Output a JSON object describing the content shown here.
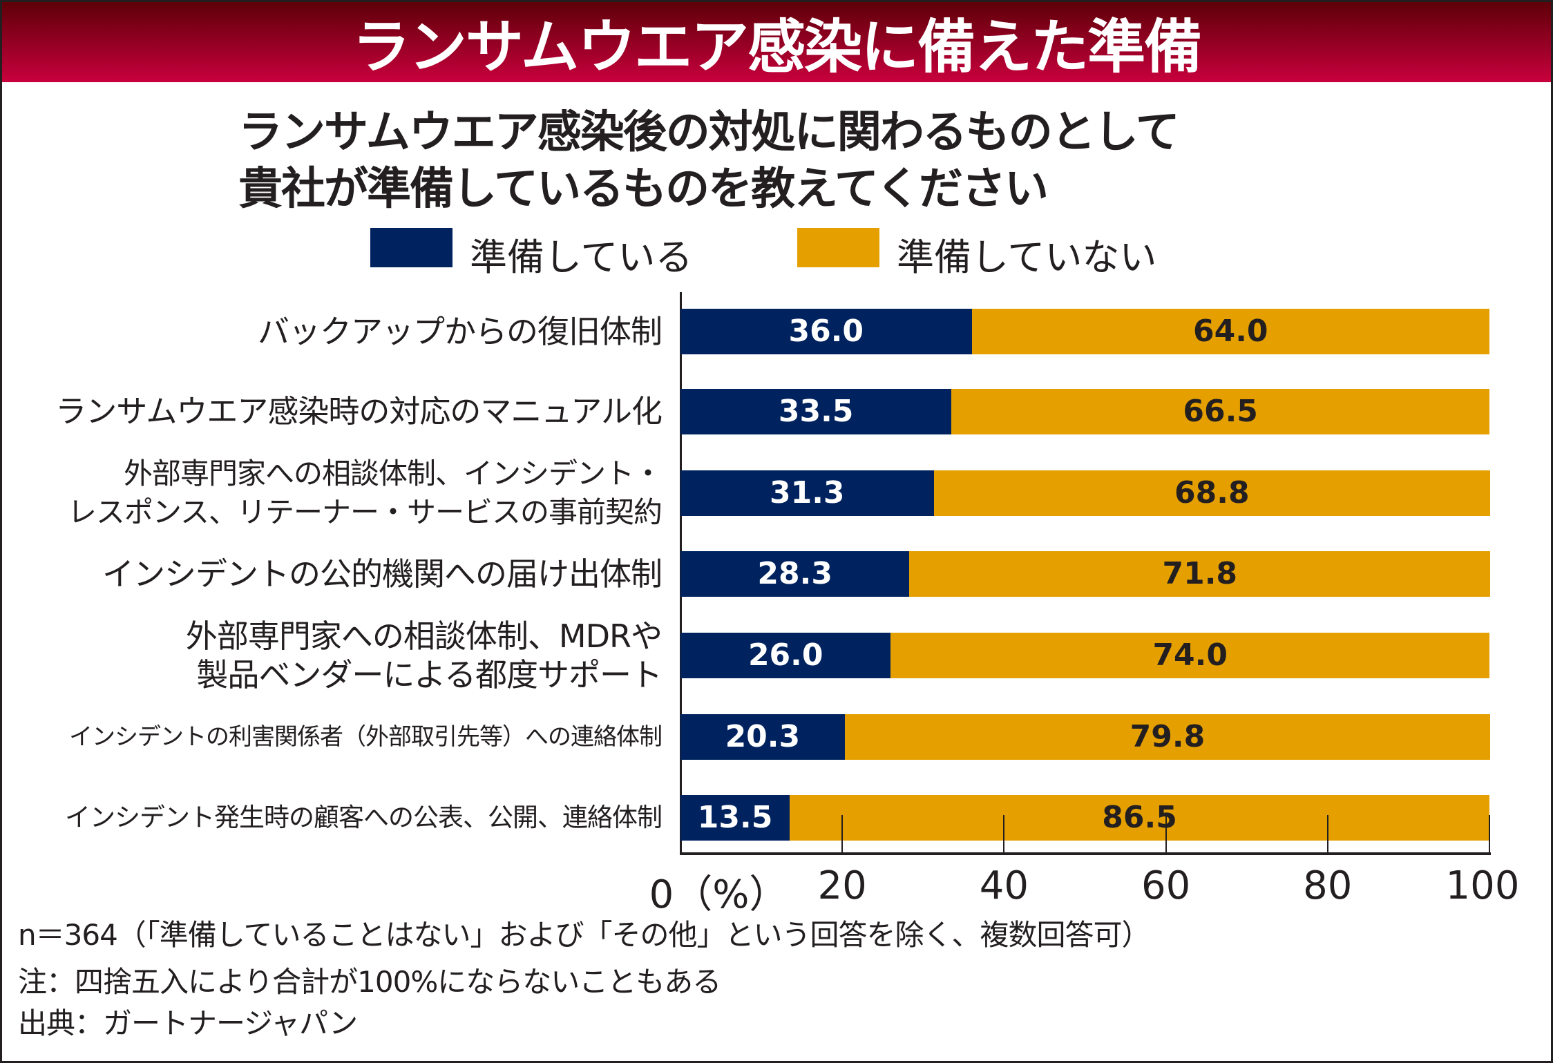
{
  "header": {
    "title": "ランサムウエア感染に備えた準備"
  },
  "chart_data": {
    "type": "bar",
    "stacked": true,
    "orientation": "horizontal",
    "title": "ランサムウエア感染に備えた準備",
    "subtitle": [
      "ランサムウエア感染後の対処に関わるものとして",
      "貴社が準備しているものを教えてください"
    ],
    "categories": [
      "バックアップからの復旧体制",
      "ランサムウエア感染時の対応のマニュアル化",
      "外部専門家への相談体制、インシデント・\nレスポンス、リテーナー・サービスの事前契約",
      "インシデントの公的機関への届け出体制",
      "外部専門家への相談体制、MDRや\n製品ベンダーによる都度サポート",
      "インシデントの利害関係者（外部取引先等）への連絡体制",
      "インシデント発生時の顧客への公表、公開、連絡体制"
    ],
    "series": [
      {
        "name": "準備している",
        "color": "#00235f",
        "values": [
          36.0,
          33.5,
          31.3,
          28.3,
          26.0,
          20.3,
          13.5
        ],
        "labels": [
          "36.0",
          "33.5",
          "31.3",
          "28.3",
          "26.0",
          "20.3",
          "13.5"
        ]
      },
      {
        "name": "準備していない",
        "color": "#e5a000",
        "values": [
          64.0,
          66.5,
          68.8,
          71.8,
          74.0,
          79.8,
          86.5
        ],
        "labels": [
          "64.0",
          "66.5",
          "68.8",
          "71.8",
          "74.0",
          "79.8",
          "86.5"
        ]
      }
    ],
    "xlim": [
      0,
      100
    ],
    "xticks": [
      "0（%）",
      "20",
      "40",
      "60",
      "80",
      "100"
    ],
    "legend": "top",
    "grid": false
  },
  "notes": [
    "n＝364（「準備していることはない」および「その他」という回答を除く、複数回答可）",
    "注：四捨五入により合計が100%にならないこともある",
    "出典：ガートナージャパン"
  ]
}
